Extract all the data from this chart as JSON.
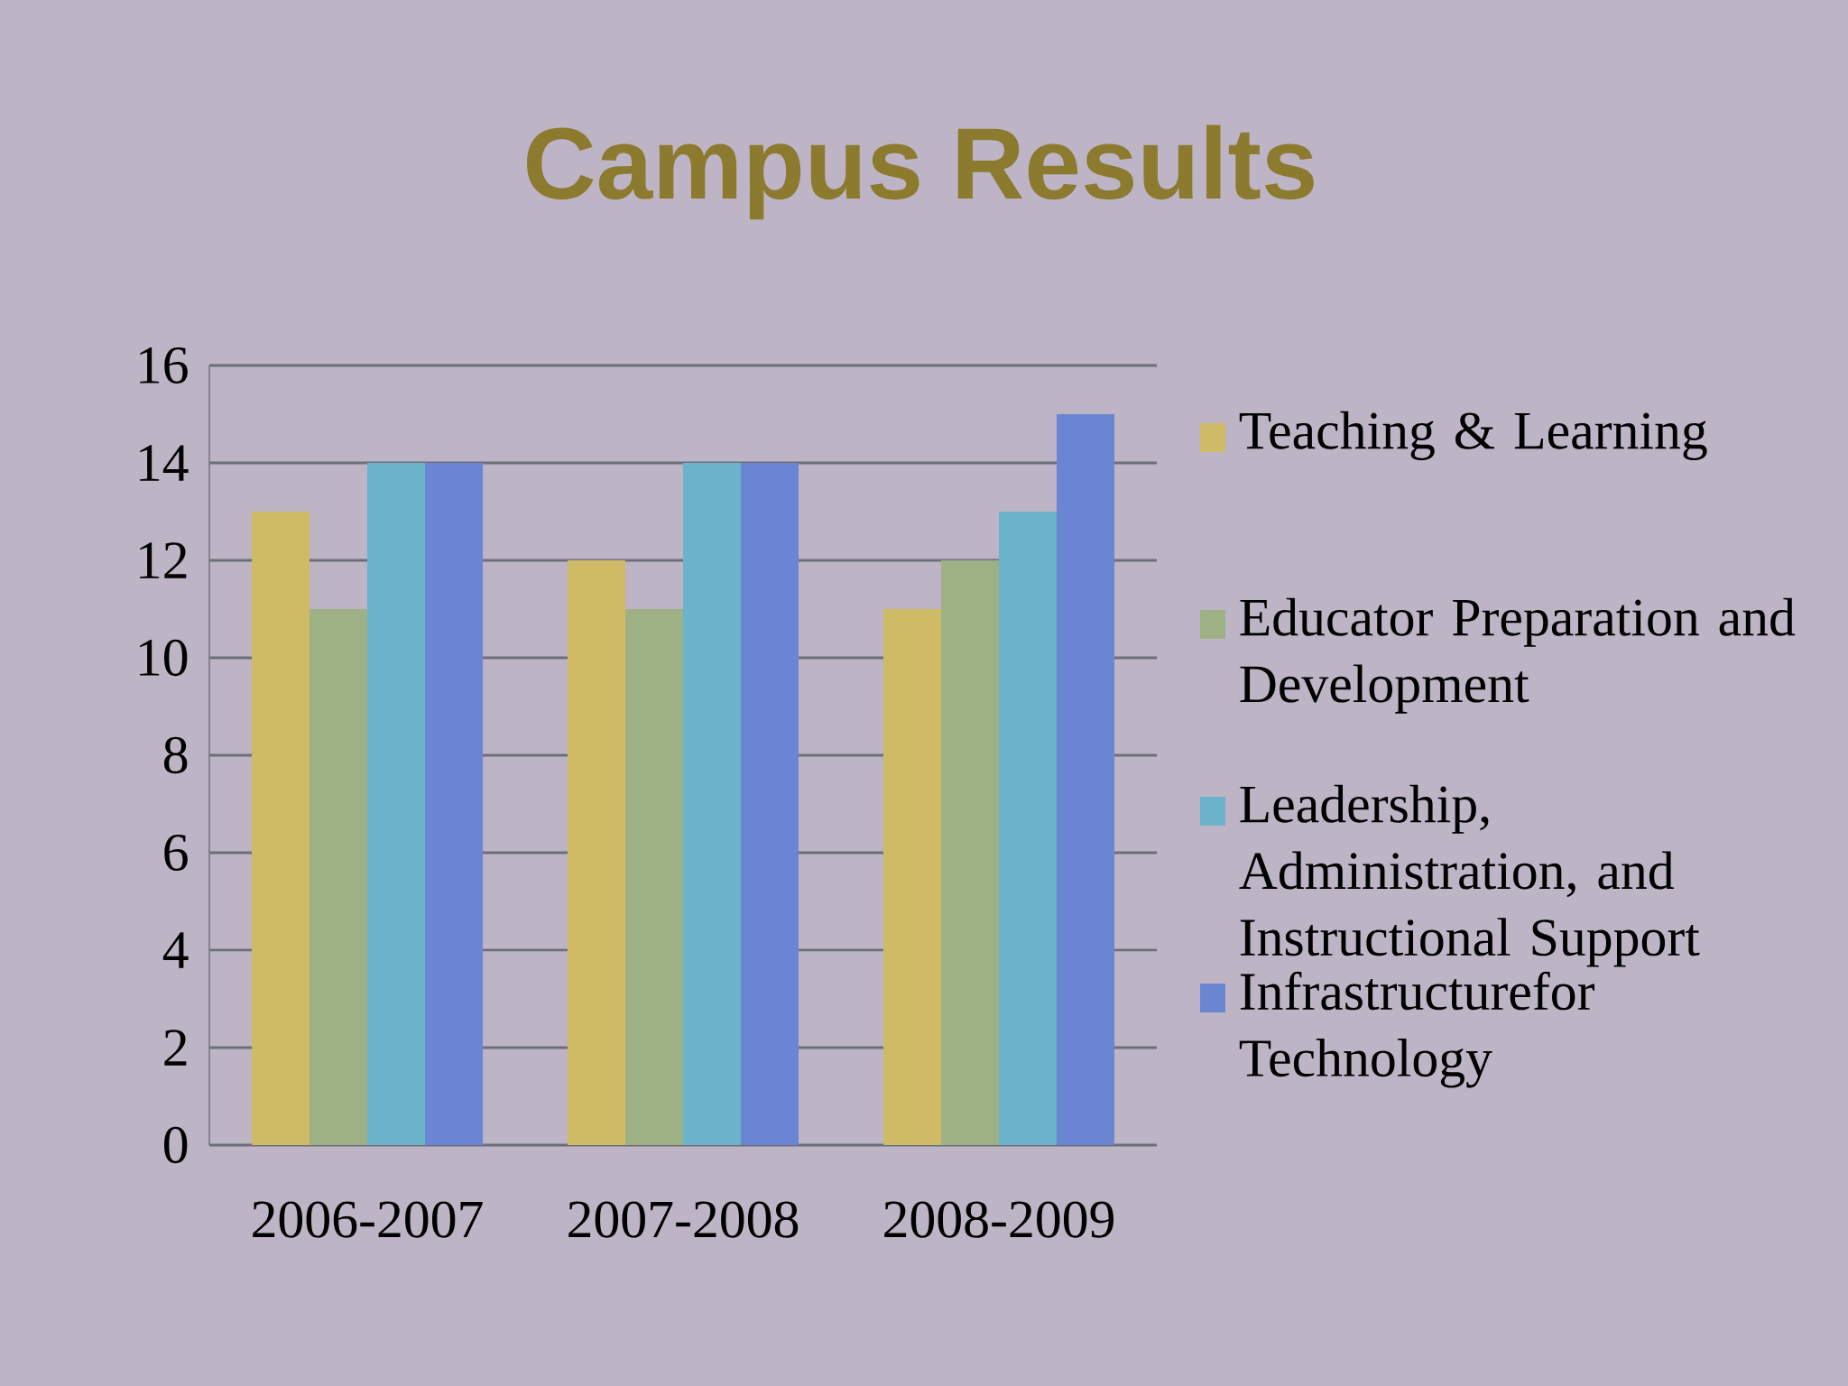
{
  "chart_data": {
    "type": "bar",
    "title": "Campus Results",
    "categories": [
      "2006-2007",
      "2007-2008",
      "2008-2009"
    ],
    "series": [
      {
        "name": "Teaching & Learning",
        "color": "#cfbb66",
        "values": [
          13,
          12,
          11
        ]
      },
      {
        "name": "Educator Preparation and Development",
        "color": "#9db185",
        "values": [
          11,
          11,
          12
        ]
      },
      {
        "name": "Leadership, Administration, and Instructional Support",
        "color": "#6ab3cb",
        "values": [
          14,
          14,
          13
        ]
      },
      {
        "name": "Infrastructurefor Technology",
        "color": "#6a86d2",
        "values": [
          14,
          14,
          15
        ]
      }
    ],
    "ylim": [
      0,
      16
    ],
    "yticks": [
      0,
      2,
      4,
      6,
      8,
      10,
      12,
      14,
      16
    ],
    "grid": "y",
    "legend": "right"
  }
}
